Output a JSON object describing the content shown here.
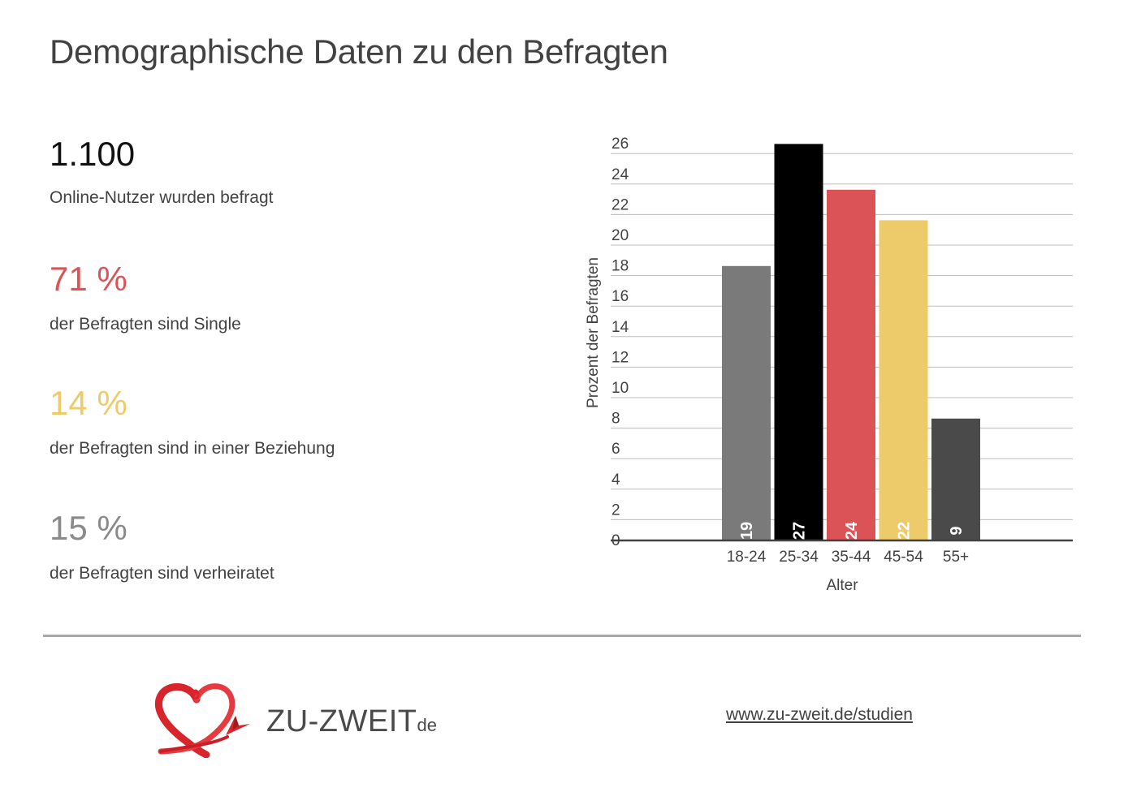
{
  "title": "Demographische Daten zu den Befragten",
  "stats": [
    {
      "value": "1.100",
      "label": "Online-Nutzer wurden befragt",
      "color": "#111111"
    },
    {
      "value": "71 %",
      "label": "der Befragten sind Single",
      "color": "#dc5357"
    },
    {
      "value": "14 %",
      "label": "der Befragten sind in einer Beziehung",
      "color": "#eecb6a"
    },
    {
      "value": "15 %",
      "label": "der Befragten sind verheiratet",
      "color": "#8a8a8a"
    }
  ],
  "chart_data": {
    "type": "bar",
    "categories": [
      "18-24",
      "25-34",
      "35-44",
      "45-54",
      "55+"
    ],
    "values": [
      19,
      27,
      24,
      22,
      9
    ],
    "colors": [
      "#7a7a7a",
      "#000000",
      "#dc5357",
      "#eecb6a",
      "#4a4a4a"
    ],
    "title": "",
    "xlabel": "Alter",
    "ylabel": "Prozent der Befragten",
    "ylim": [
      0,
      26
    ],
    "yticks": [
      0,
      2,
      4,
      6,
      8,
      10,
      12,
      14,
      16,
      18,
      20,
      22,
      24,
      26
    ],
    "grid": true,
    "data_labels": true
  },
  "footer": {
    "logo_text": "ZU-ZWEIT",
    "logo_tld": "de",
    "logo_icon": "heart-logo-icon",
    "url": "www.zu-zweit.de/studien"
  }
}
